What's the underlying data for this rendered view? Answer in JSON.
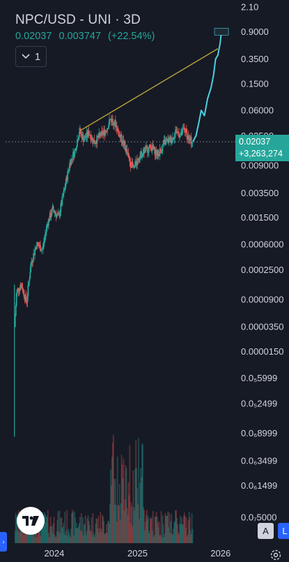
{
  "header": {
    "title": "NPC/USD - UNI · 3D",
    "price": "0.02037",
    "change": "0.003747",
    "change_pct": "(+22.54%)"
  },
  "controls": {
    "collapse_count": "1",
    "auto_label": "A",
    "log_label": "L"
  },
  "price_tag": {
    "price": "0.02037",
    "change": "+3,263,274"
  },
  "colors": {
    "background": "#161a25",
    "up": "#26a69a",
    "down": "#ef5350",
    "trendline": "#b8a43a",
    "projection": "#4dd0e1",
    "accent": "#2962ff"
  },
  "icons": [
    "chevron-down-icon",
    "tradingview-logo-icon",
    "settings-icon"
  ],
  "chart_data": {
    "type": "candlestick",
    "scale": "log",
    "yticks": [
      "2.10",
      "0.9000",
      "0.3500",
      "0.1500",
      "0.06000",
      "0.02500",
      "0.009000",
      "0.003500",
      "0.001500",
      "0.0006000",
      "0.0002500",
      "0.0000900",
      "0.0000350",
      "0.0000150",
      "0.0₅5999",
      "0.0₅2499",
      "0.0₆8999",
      "0.0₆3499",
      "0.0₆1499",
      "0.0₇5000"
    ],
    "ytick_values": [
      2.1,
      0.9,
      0.35,
      0.15,
      0.06,
      0.025,
      0.009,
      0.0035,
      0.0015,
      0.0006,
      0.00025,
      9e-05,
      3.5e-05,
      1.5e-05,
      5.999e-06,
      2.499e-06,
      8.999e-07,
      3.499e-07,
      1.499e-07,
      5e-08
    ],
    "xticks": [
      "2024",
      "2025",
      "2026"
    ],
    "ylim": [
      5e-08,
      2.1
    ],
    "xlim": [
      "2023-06-01",
      "2026-03-01"
    ],
    "last_price": 0.02037,
    "price_path": [
      {
        "date": "2023-07-10",
        "price": 3.5e-05
      },
      {
        "date": "2023-07-20",
        "price": 0.00012
      },
      {
        "date": "2023-08-10",
        "price": 0.00015
      },
      {
        "date": "2023-09-01",
        "price": 8e-05
      },
      {
        "date": "2023-09-20",
        "price": 0.0003
      },
      {
        "date": "2023-10-15",
        "price": 0.0006
      },
      {
        "date": "2023-11-10",
        "price": 0.0005
      },
      {
        "date": "2023-12-01",
        "price": 0.0012
      },
      {
        "date": "2023-12-25",
        "price": 0.002
      },
      {
        "date": "2024-01-20",
        "price": 0.0015
      },
      {
        "date": "2024-02-15",
        "price": 0.004
      },
      {
        "date": "2024-03-10",
        "price": 0.01
      },
      {
        "date": "2024-04-01",
        "price": 0.015
      },
      {
        "date": "2024-04-20",
        "price": 0.03
      },
      {
        "date": "2024-05-10",
        "price": 0.022
      },
      {
        "date": "2024-06-01",
        "price": 0.028
      },
      {
        "date": "2024-06-25",
        "price": 0.02
      },
      {
        "date": "2024-07-20",
        "price": 0.025
      },
      {
        "date": "2024-08-15",
        "price": 0.03
      },
      {
        "date": "2024-09-05",
        "price": 0.045
      },
      {
        "date": "2024-09-25",
        "price": 0.038
      },
      {
        "date": "2024-10-15",
        "price": 0.025
      },
      {
        "date": "2024-11-05",
        "price": 0.018
      },
      {
        "date": "2024-11-25",
        "price": 0.011
      },
      {
        "date": "2024-12-15",
        "price": 0.008
      },
      {
        "date": "2025-01-05",
        "price": 0.012
      },
      {
        "date": "2025-02-01",
        "price": 0.015
      },
      {
        "date": "2025-03-01",
        "price": 0.017
      },
      {
        "date": "2025-04-01",
        "price": 0.013
      },
      {
        "date": "2025-05-01",
        "price": 0.02
      },
      {
        "date": "2025-06-01",
        "price": 0.022
      },
      {
        "date": "2025-06-20",
        "price": 0.03
      },
      {
        "date": "2025-07-10",
        "price": 0.025
      },
      {
        "date": "2025-07-25",
        "price": 0.032
      },
      {
        "date": "2025-08-15",
        "price": 0.022
      },
      {
        "date": "2025-09-01",
        "price": 0.02037
      }
    ],
    "projection": [
      {
        "date": "2025-09-01",
        "price": 0.02037
      },
      {
        "date": "2025-09-15",
        "price": 0.025
      },
      {
        "date": "2025-09-28",
        "price": 0.04
      },
      {
        "date": "2025-10-08",
        "price": 0.06
      },
      {
        "date": "2025-10-22",
        "price": 0.05
      },
      {
        "date": "2025-11-05",
        "price": 0.09
      },
      {
        "date": "2025-11-20",
        "price": 0.13
      },
      {
        "date": "2025-12-01",
        "price": 0.2
      },
      {
        "date": "2025-12-10",
        "price": 0.35
      },
      {
        "date": "2025-12-20",
        "price": 0.4
      },
      {
        "date": "2025-12-30",
        "price": 0.6
      },
      {
        "date": "2026-01-05",
        "price": 0.9
      }
    ],
    "trendline": [
      {
        "date": "2024-04-25",
        "price": 0.03
      },
      {
        "date": "2025-12-20",
        "price": 0.5
      }
    ],
    "current_marker": {
      "date": "2026-01-05",
      "price": 0.9
    }
  }
}
